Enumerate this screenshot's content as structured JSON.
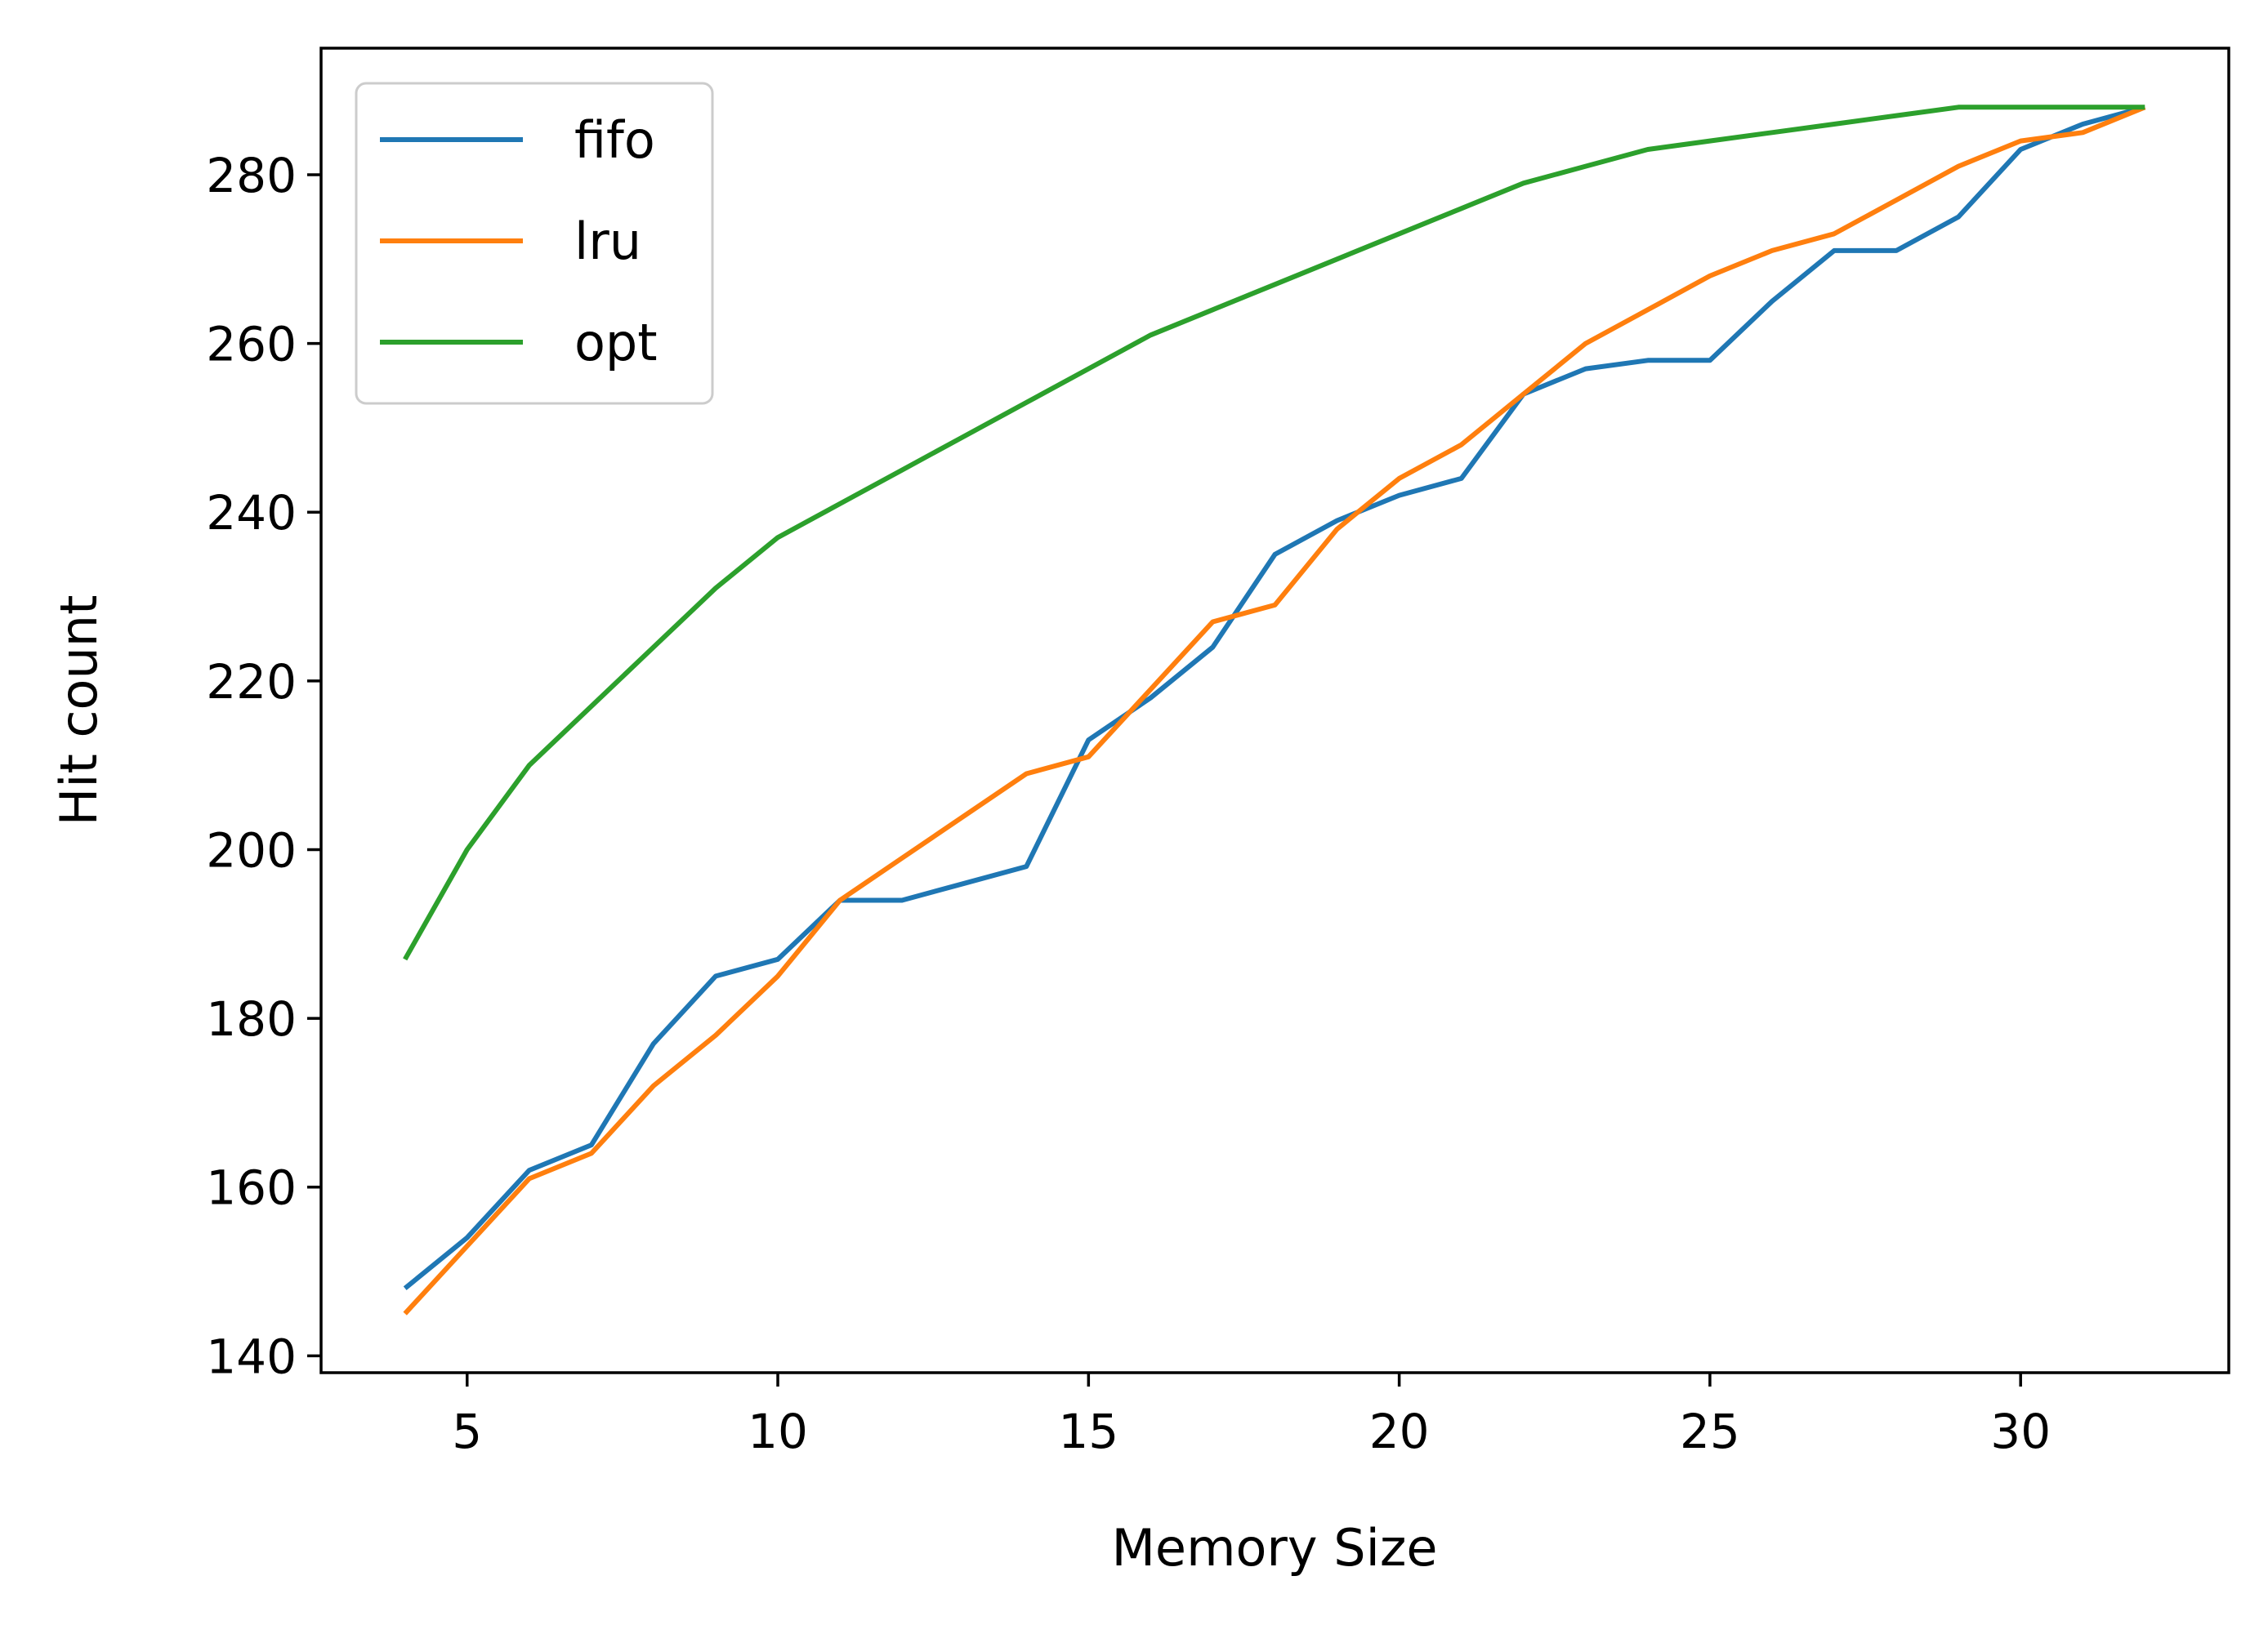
{
  "chart_data": {
    "type": "line",
    "title": "",
    "xlabel": "Memory Size",
    "ylabel": "Hit count",
    "xlim": [
      2.65,
      33.35
    ],
    "ylim": [
      138,
      295
    ],
    "x_ticks": [
      5,
      10,
      15,
      20,
      25,
      30
    ],
    "x_tick_labels": [
      "5",
      "10",
      "15",
      "20",
      "25",
      "30"
    ],
    "y_ticks": [
      140,
      160,
      180,
      200,
      220,
      240,
      260,
      280
    ],
    "y_tick_labels": [
      "140",
      "160",
      "180",
      "200",
      "220",
      "240",
      "260",
      "280"
    ],
    "grid": false,
    "legend_position": "upper-left",
    "x": [
      4,
      5,
      6,
      7,
      8,
      9,
      10,
      11,
      12,
      13,
      14,
      15,
      16,
      17,
      18,
      19,
      20,
      21,
      22,
      23,
      24,
      25,
      26,
      27,
      28,
      29,
      30,
      31,
      32
    ],
    "series": [
      {
        "name": "fifo",
        "color": "#1f77b4",
        "values": [
          148,
          154,
          162,
          165,
          177,
          185,
          187,
          194,
          194,
          196,
          198,
          213,
          218,
          224,
          235,
          239,
          242,
          244,
          254,
          257,
          258,
          258,
          265,
          271,
          271,
          275,
          283,
          286,
          288
        ]
      },
      {
        "name": "lru",
        "color": "#ff7f0e",
        "values": [
          145,
          153,
          161,
          164,
          172,
          178,
          185,
          194,
          199,
          204,
          209,
          211,
          219,
          227,
          229,
          238,
          244,
          248,
          254,
          260,
          264,
          268,
          271,
          273,
          277,
          281,
          284,
          285,
          288
        ]
      },
      {
        "name": "opt",
        "color": "#2ca02c",
        "values": [
          187,
          200,
          210,
          217,
          224,
          231,
          237,
          241,
          245,
          249,
          253,
          257,
          261,
          264,
          267,
          270,
          273,
          276,
          279,
          281,
          283,
          284,
          285,
          286,
          287,
          288,
          288,
          288,
          288
        ]
      }
    ]
  }
}
